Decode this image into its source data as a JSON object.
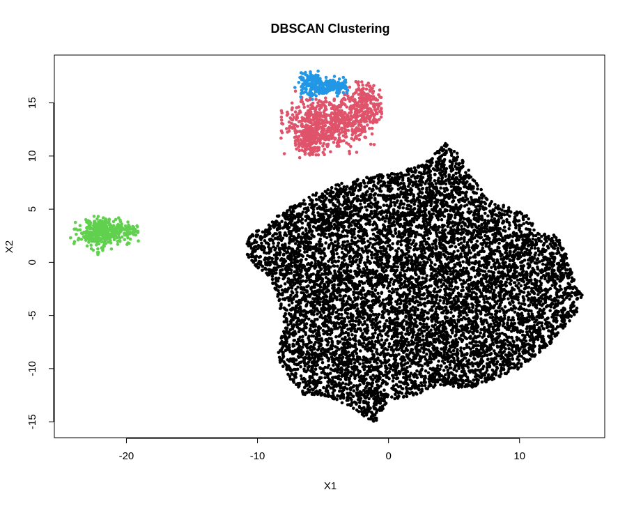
{
  "chart_data": {
    "type": "scatter",
    "title": "DBSCAN Clustering",
    "xlabel": "X1",
    "ylabel": "X2",
    "xlim": [
      -25.5,
      16.5
    ],
    "ylim": [
      -16.5,
      19.5
    ],
    "xticks": [
      -20,
      -10,
      0,
      10
    ],
    "yticks": [
      -15,
      -10,
      -5,
      0,
      5,
      10,
      15
    ],
    "grid": false,
    "legend": "none",
    "series": [
      {
        "color": "#000000",
        "point_count": 9000,
        "extent": {
          "x": [
            -10.8,
            14.8
          ],
          "y": [
            -15.2,
            11.3
          ]
        },
        "outline_polygon": [
          [
            -10.8,
            1.8
          ],
          [
            -10.5,
            3.0
          ],
          [
            -9.5,
            3.0
          ],
          [
            -8.5,
            4.5
          ],
          [
            -7.0,
            5.5
          ],
          [
            -5.0,
            7.0
          ],
          [
            -3.0,
            7.6
          ],
          [
            -1.0,
            8.2
          ],
          [
            1.0,
            8.5
          ],
          [
            3.0,
            9.6
          ],
          [
            4.4,
            11.3
          ],
          [
            5.5,
            10.0
          ],
          [
            6.5,
            8.0
          ],
          [
            7.5,
            6.0
          ],
          [
            9.5,
            5.0
          ],
          [
            10.5,
            4.5
          ],
          [
            11.5,
            3.0
          ],
          [
            13.0,
            2.5
          ],
          [
            13.5,
            1.0
          ],
          [
            14.0,
            -1.0
          ],
          [
            14.8,
            -3.0
          ],
          [
            14.5,
            -4.5
          ],
          [
            13.5,
            -6.0
          ],
          [
            12.5,
            -7.5
          ],
          [
            11.5,
            -8.5
          ],
          [
            10.0,
            -10.0
          ],
          [
            8.0,
            -11.0
          ],
          [
            6.0,
            -12.0
          ],
          [
            4.0,
            -11.5
          ],
          [
            2.0,
            -12.5
          ],
          [
            0.0,
            -13.0
          ],
          [
            -1.0,
            -15.2
          ],
          [
            -3.0,
            -13.5
          ],
          [
            -5.0,
            -12.5
          ],
          [
            -6.5,
            -12.5
          ],
          [
            -7.5,
            -11.0
          ],
          [
            -8.5,
            -9.0
          ],
          [
            -8.0,
            -6.0
          ],
          [
            -8.5,
            -3.0
          ],
          [
            -9.0,
            -1.5
          ],
          [
            -10.0,
            -0.5
          ],
          [
            -10.8,
            0.5
          ]
        ]
      },
      {
        "color": "#DF536B",
        "point_count": 1000,
        "extent": {
          "x": [
            -8.2,
            -0.5
          ],
          "y": [
            9.8,
            17.0
          ]
        },
        "blobs": [
          {
            "cx": -4.8,
            "cy": 13.2,
            "sx": 1.7,
            "sy": 1.1,
            "w": 0.55
          },
          {
            "cx": -1.8,
            "cy": 14.6,
            "sx": 0.9,
            "sy": 1.2,
            "w": 0.3
          },
          {
            "cx": -5.9,
            "cy": 11.4,
            "sx": 0.5,
            "sy": 0.7,
            "w": 0.15
          }
        ]
      },
      {
        "color": "#2297E6",
        "point_count": 260,
        "extent": {
          "x": [
            -7.2,
            -3.1
          ],
          "y": [
            15.2,
            18.2
          ]
        },
        "blobs": [
          {
            "cx": -5.9,
            "cy": 16.7,
            "sx": 0.6,
            "sy": 0.6,
            "w": 0.55
          },
          {
            "cx": -4.1,
            "cy": 16.6,
            "sx": 0.7,
            "sy": 0.35,
            "w": 0.45
          }
        ]
      },
      {
        "color": "#61D04F",
        "point_count": 420,
        "extent": {
          "x": [
            -24.5,
            -18.9
          ],
          "y": [
            0.4,
            4.4
          ]
        },
        "blobs": [
          {
            "cx": -22.0,
            "cy": 2.7,
            "sx": 0.8,
            "sy": 0.7,
            "w": 0.8
          },
          {
            "cx": -20.3,
            "cy": 3.0,
            "sx": 0.7,
            "sy": 0.35,
            "w": 0.2
          }
        ]
      }
    ]
  }
}
